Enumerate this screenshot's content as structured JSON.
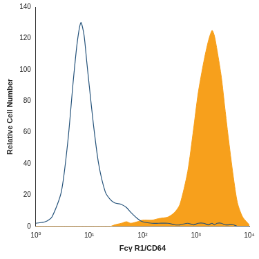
{
  "chart_data": {
    "type": "line",
    "log": "x",
    "x_label": "Fcγ R1/CD64",
    "y_label": "Relative Cell Number",
    "x": [
      1,
      1.5,
      2,
      3,
      4,
      5,
      6,
      7,
      8,
      9,
      10,
      12,
      15,
      20,
      25,
      30,
      40,
      50,
      60,
      80,
      100,
      150,
      200,
      300,
      400,
      500,
      700,
      900,
      1100,
      1400,
      1700,
      2000,
      2200,
      2500,
      3000,
      3500,
      4000,
      5000,
      6000,
      7500,
      10000
    ],
    "series": [
      {
        "type": "area",
        "color": "#f7a01c",
        "values": [
          0,
          0,
          0,
          0,
          0,
          0,
          0,
          0,
          0,
          0,
          0,
          0,
          0,
          0,
          0,
          1,
          2,
          3,
          2,
          3,
          4,
          4,
          5,
          6,
          9,
          14,
          35,
          62,
          85,
          105,
          118,
          125,
          122,
          112,
          95,
          75,
          58,
          32,
          15,
          6,
          1
        ]
      },
      {
        "type": "line",
        "color": "#24527a",
        "values": [
          2,
          3,
          6,
          22,
          55,
          92,
          118,
          130,
          122,
          105,
          90,
          65,
          40,
          22,
          17,
          15,
          14,
          12,
          9,
          5,
          3,
          2,
          2,
          2,
          1,
          1,
          2,
          1,
          2,
          2,
          1,
          2,
          1,
          2,
          2,
          1,
          1,
          1,
          0,
          0,
          0
        ]
      }
    ],
    "xlim": [
      1,
      10000
    ],
    "xticks": [
      {
        "value": 1,
        "label": "10⁰"
      },
      {
        "value": 10,
        "label": "10¹"
      },
      {
        "value": 100,
        "label": "10²"
      },
      {
        "value": 1000,
        "label": "10³"
      },
      {
        "value": 10000,
        "label": "10⁴"
      }
    ],
    "ylim": [
      0,
      140
    ],
    "yticks": [
      0,
      20,
      40,
      60,
      80,
      100,
      120,
      140
    ],
    "grid": false
  }
}
